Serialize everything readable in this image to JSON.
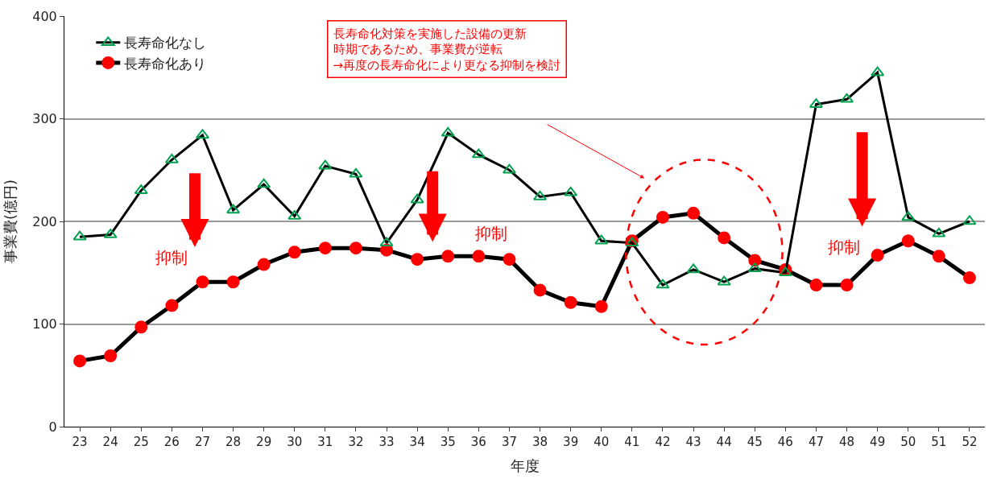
{
  "chart_data": {
    "type": "line",
    "xlabel": "年度",
    "ylabel": "事業費(億円)",
    "categories": [
      "23",
      "24",
      "25",
      "26",
      "27",
      "28",
      "29",
      "30",
      "31",
      "32",
      "33",
      "34",
      "35",
      "36",
      "37",
      "38",
      "39",
      "40",
      "41",
      "42",
      "43",
      "44",
      "45",
      "46",
      "47",
      "48",
      "49",
      "50",
      "51",
      "52"
    ],
    "series": [
      {
        "name": "長寿命化なし",
        "color": "#00a050",
        "marker": "triangle",
        "values": [
          185,
          187,
          230,
          260,
          284,
          211,
          236,
          205,
          254,
          246,
          179,
          221,
          286,
          265,
          250,
          224,
          228,
          181,
          179,
          138,
          153,
          141,
          154,
          150,
          314,
          319,
          345,
          204,
          188,
          200
        ]
      },
      {
        "name": "長寿命化あり",
        "color": "#ff0000",
        "marker": "circle",
        "values": [
          64,
          69,
          97,
          118,
          141,
          141,
          158,
          170,
          174,
          174,
          172,
          163,
          166,
          166,
          163,
          133,
          121,
          117,
          181,
          204,
          208,
          184,
          162,
          153,
          138,
          138,
          167,
          181,
          166,
          145
        ]
      }
    ],
    "ylim": [
      0,
      400
    ],
    "yticks": [
      0,
      100,
      200,
      300,
      400
    ],
    "grid": "y",
    "legend": "top left",
    "annotations": [
      "長寿命化対策を実施した設備の更新",
      "時期であるため、事業費が逆転",
      "→再度の長寿命化により更なる抑制を検討",
      "抑制",
      "抑制",
      "抑制"
    ]
  }
}
